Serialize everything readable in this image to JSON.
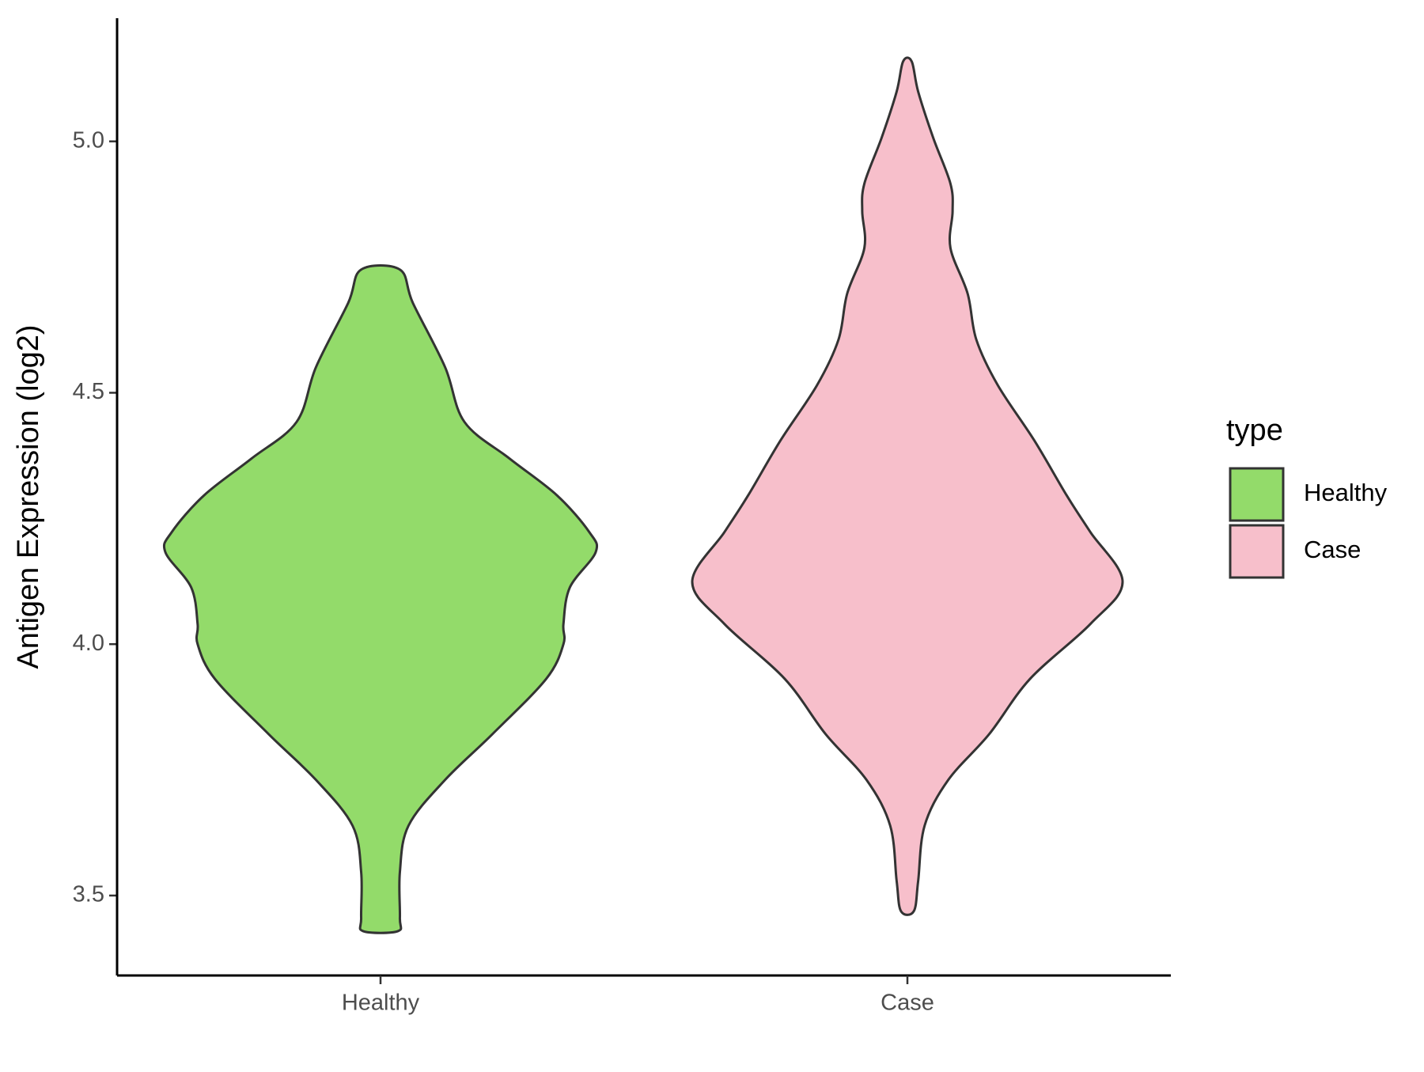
{
  "chart_data": {
    "type": "violin",
    "y_label": "Antigen Expression (log2)",
    "categories": [
      "Healthy",
      "Case"
    ],
    "legend_title": "type",
    "legend_position": "right",
    "ylim": [
      3.341,
      5.245
    ],
    "yticks": [
      3.5,
      {
        "value": 4,
        "label": "4.0"
      },
      4.5,
      {
        "value": 5,
        "label": "5.0"
      }
    ],
    "series": [
      {
        "name": "Healthy",
        "color": "#93DB6A",
        "y": [
          4.745,
          4.679,
          4.551,
          4.442,
          4.369,
          4.296,
          4.223,
          4.183,
          4.113,
          4.04,
          4.0,
          3.931,
          3.821,
          3.73,
          3.639,
          3.547,
          3.456,
          3.429
        ],
        "density": [
          0.09,
          0.15,
          0.3,
          0.39,
          0.6,
          0.82,
          0.97,
          1.0,
          0.88,
          0.85,
          0.85,
          0.77,
          0.52,
          0.3,
          0.13,
          0.09,
          0.09,
          0.08
        ]
      },
      {
        "name": "Case",
        "color": "#F7BFCB",
        "y": [
          5.159,
          5.099,
          5.007,
          4.916,
          4.861,
          4.788,
          4.697,
          4.606,
          4.515,
          4.405,
          4.296,
          4.223,
          4.124,
          4.04,
          3.931,
          3.821,
          3.73,
          3.639,
          3.529,
          3.469
        ],
        "density": [
          0.02,
          0.05,
          0.12,
          0.2,
          0.21,
          0.2,
          0.28,
          0.32,
          0.42,
          0.59,
          0.74,
          0.85,
          1.0,
          0.85,
          0.57,
          0.38,
          0.19,
          0.08,
          0.05,
          0.03
        ]
      }
    ]
  }
}
